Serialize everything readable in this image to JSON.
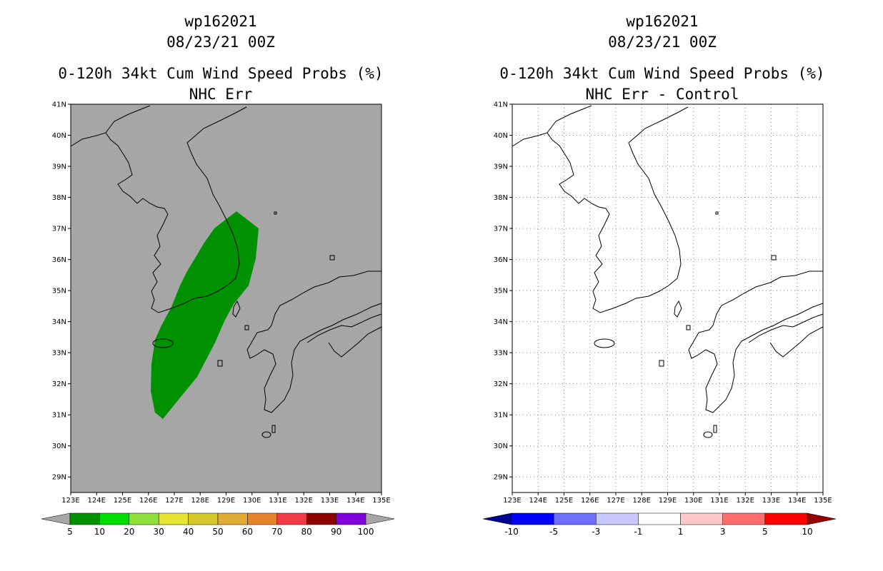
{
  "left_panel": {
    "storm_id": "wp162021",
    "datetime": "08/23/21 00Z",
    "product": "0-120h 34kt Cum Wind Speed Probs (%)",
    "subtitle": "NHC Err",
    "colorbar": {
      "colors": [
        "#a6a6a6",
        "#009100",
        "#00dc00",
        "#8ee03a",
        "#e6e632",
        "#d7c82a",
        "#e1aa32",
        "#e6822a",
        "#f03c46",
        "#8c0000",
        "#8200dc",
        "#a6a6a6"
      ],
      "labels": [
        "5",
        "10",
        "20",
        "30",
        "40",
        "50",
        "60",
        "70",
        "80",
        "90",
        "100"
      ]
    }
  },
  "right_panel": {
    "storm_id": "wp162021",
    "datetime": "08/23/21 00Z",
    "product": "0-120h 34kt Cum Wind Speed Probs (%)",
    "subtitle": "NHC Err - Control",
    "colorbar": {
      "colors": [
        "#000096",
        "#0000ff",
        "#6e6eff",
        "#c8c8ff",
        "#ffffff",
        "#ffc8c8",
        "#ff6e6e",
        "#ff0000",
        "#960000"
      ],
      "labels": [
        "-10",
        "-5",
        "-3",
        "-1",
        "1",
        "3",
        "5",
        "10"
      ]
    }
  },
  "map": {
    "lat_labels": [
      "41N",
      "40N",
      "39N",
      "38N",
      "37N",
      "36N",
      "35N",
      "34N",
      "33N",
      "32N",
      "31N",
      "30N",
      "29N"
    ],
    "lon_labels": [
      "123E",
      "124E",
      "125E",
      "126E",
      "127E",
      "128E",
      "129E",
      "130E",
      "131E",
      "132E",
      "133E",
      "134E",
      "135E"
    ],
    "lat_range": [
      28.5,
      41
    ],
    "lon_range": [
      123,
      135
    ],
    "background_left": "#a6a6a6",
    "prob_fill_color": "#009100"
  }
}
